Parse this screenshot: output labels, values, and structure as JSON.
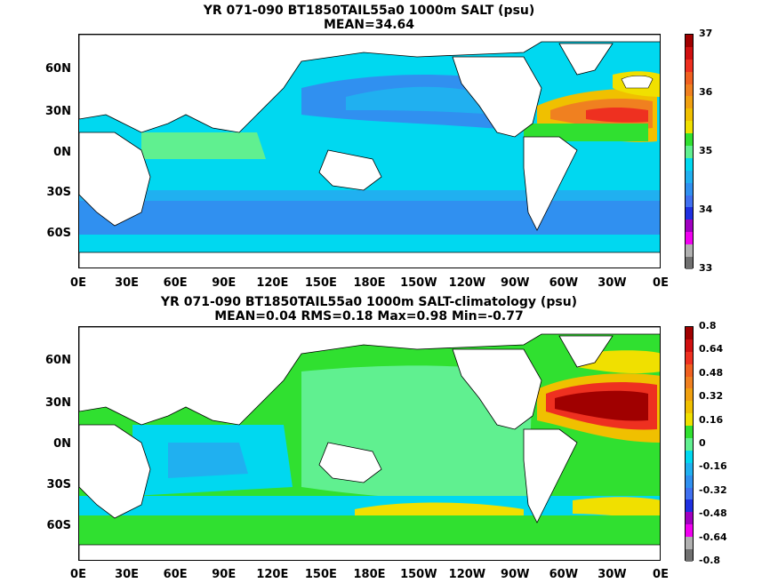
{
  "panel1": {
    "title": "YR 071-090 BT1850TAIL55a0 1000m SALT (psu)",
    "subtitle": "MEAN=34.64",
    "colorbar_labels": [
      "37",
      "36",
      "35",
      "34",
      "33"
    ],
    "colorbar_colors": [
      "#a00000",
      "#d01010",
      "#ee3020",
      "#f06020",
      "#f08020",
      "#f0a010",
      "#f0c000",
      "#f0e000",
      "#30e030",
      "#60f090",
      "#00d8f0",
      "#20b0f0",
      "#3090f0",
      "#4070f0",
      "#2030e0",
      "#a000c0",
      "#f000f0",
      "#b0b0b0",
      "#707070"
    ]
  },
  "panel2": {
    "title": "YR 071-090 BT1850TAIL55a0 1000m SALT-climatology (psu)",
    "subtitle": "MEAN=0.04   RMS=0.18   Max=0.98   Min=-0.77",
    "colorbar_labels": [
      "0.8",
      "0.64",
      "0.48",
      "0.32",
      "0.16",
      "0",
      "-0.16",
      "-0.32",
      "-0.48",
      "-0.64",
      "-0.8"
    ],
    "colorbar_colors": [
      "#a00000",
      "#d01010",
      "#ee3020",
      "#f06020",
      "#f08020",
      "#f0a010",
      "#f0c000",
      "#f0e000",
      "#30e030",
      "#60f090",
      "#00d8f0",
      "#20b0f0",
      "#3090f0",
      "#4070f0",
      "#2030e0",
      "#a000c0",
      "#f000f0",
      "#b0b0b0",
      "#707070"
    ]
  },
  "axes": {
    "lat_labels": [
      "60N",
      "30N",
      "0N",
      "30S",
      "60S"
    ],
    "lon_labels": [
      "0E",
      "30E",
      "60E",
      "90E",
      "120E",
      "150E",
      "180E",
      "150W",
      "120W",
      "90W",
      "60W",
      "30W",
      "0E"
    ]
  },
  "colors": {
    "ocean_main": "#30b0f0",
    "land": "#ffffff",
    "missing": "#30e030"
  }
}
